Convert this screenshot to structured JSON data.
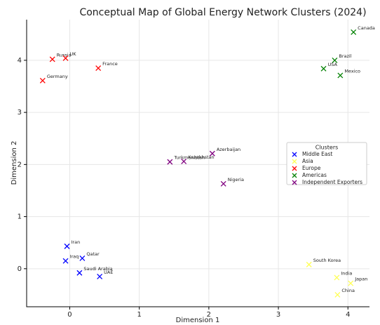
{
  "chart_data": {
    "type": "scatter",
    "title": "Conceptual Map of Global Energy Network Clusters (2024)",
    "x_label": "Dimension 1",
    "y_label": "Dimension 2",
    "legend_title": "Clusters",
    "legend_position": "center right",
    "grid": true,
    "xlim": [
      -0.62,
      4.31
    ],
    "ylim": [
      -0.73,
      4.78
    ],
    "xticks": [
      0,
      1,
      2,
      3,
      4
    ],
    "yticks": [
      0,
      1,
      2,
      3,
      4
    ],
    "series": [
      {
        "name": "Middle East",
        "color": "#0000ff",
        "labels": [
          "Iran",
          "Qatar",
          "Iraq",
          "Saudi Arabia",
          "UAE"
        ],
        "x": [
          -0.04,
          0.18,
          -0.06,
          0.14,
          0.43
        ],
        "y": [
          0.43,
          0.2,
          0.15,
          -0.08,
          -0.15
        ]
      },
      {
        "name": "Asia",
        "color": "#ffff55",
        "labels": [
          "South Korea",
          "India",
          "Japan",
          "China"
        ],
        "x": [
          3.44,
          3.84,
          4.04,
          3.85
        ],
        "y": [
          0.08,
          -0.17,
          -0.28,
          -0.5
        ]
      },
      {
        "name": "Europe",
        "color": "#ff0000",
        "labels": [
          "Russia",
          "UK",
          "France",
          "Germany"
        ],
        "x": [
          -0.25,
          -0.06,
          0.41,
          -0.39
        ],
        "y": [
          4.02,
          4.04,
          3.85,
          3.61
        ]
      },
      {
        "name": "Americas",
        "color": "#008000",
        "labels": [
          "Canada",
          "Brazil",
          "USA",
          "Mexico"
        ],
        "x": [
          4.08,
          3.81,
          3.65,
          3.89
        ],
        "y": [
          4.54,
          4.0,
          3.84,
          3.71
        ]
      },
      {
        "name": "Independent Exporters",
        "color": "#800080",
        "labels": [
          "Azerbaijan",
          "Kazakhstan",
          "Turkmenistan",
          "Nigeria"
        ],
        "x": [
          2.05,
          1.64,
          1.44,
          2.21
        ],
        "y": [
          2.21,
          2.06,
          2.05,
          1.63
        ]
      }
    ]
  }
}
